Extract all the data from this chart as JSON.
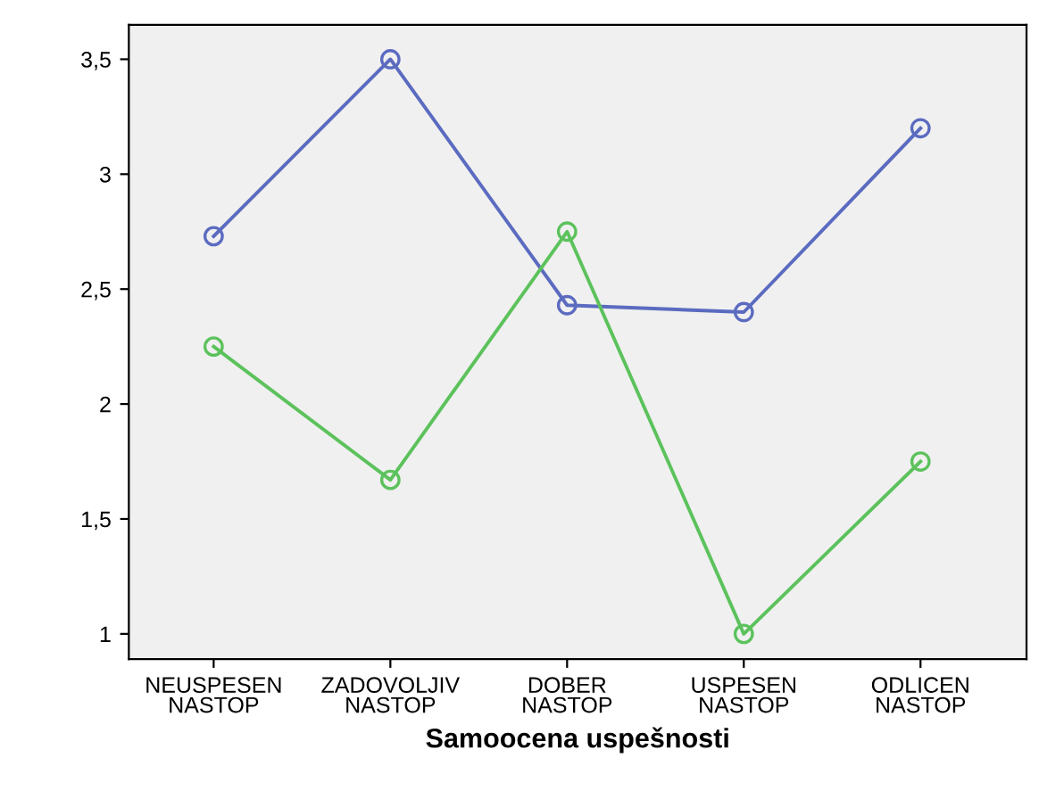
{
  "chart_data": {
    "type": "line",
    "xlabel": "Samoocena uspešnosti",
    "categories": [
      "NEUSPESEN\nNASTOP",
      "ZADOVOLJIV\nNASTOP",
      "DOBER\nNASTOP",
      "USPESEN\nNASTOP",
      "ODLICEN\nNASTOP"
    ],
    "series": [
      {
        "color": "#5b6bc0",
        "values": [
          2.73,
          3.5,
          2.43,
          2.4,
          3.2
        ]
      },
      {
        "color": "#5cc25c",
        "values": [
          2.25,
          1.67,
          2.75,
          1.0,
          1.75
        ]
      }
    ],
    "ylim": [
      0.89,
      3.65
    ],
    "yticks": [
      1,
      {
        "value": 1.5,
        "label": "1,5"
      },
      2,
      {
        "value": 2.5,
        "label": "2,5"
      },
      3,
      {
        "value": 3.5,
        "label": "3,5"
      }
    ],
    "marker": "circle",
    "line_style": "solid",
    "grid": false,
    "legend": false
  }
}
